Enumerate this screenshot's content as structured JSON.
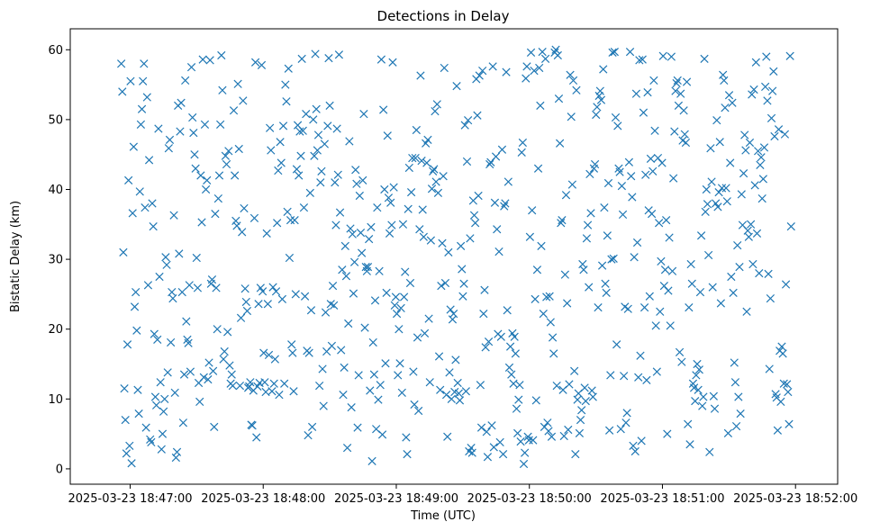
{
  "chart_data": {
    "type": "scatter",
    "title": "Detections in Delay",
    "xlabel": "Time (UTC)",
    "ylabel": "Bistatic Delay (km)",
    "marker": "x",
    "color": "#1f77b4",
    "grid": false,
    "legend": "none",
    "x_range": [
      "2025-03-23 18:46:56",
      "2025-03-23 18:51:58"
    ],
    "xlim": [
      "2025-03-23 18:46:33",
      "2025-03-23 18:52:19"
    ],
    "ylim": [
      -2.2,
      63
    ],
    "x_ticks": [
      "2025-03-23 18:47:00",
      "2025-03-23 18:48:00",
      "2025-03-23 18:49:00",
      "2025-03-23 18:50:00",
      "2025-03-23 18:51:00",
      "2025-03-23 18:52:00"
    ],
    "y_ticks": [
      0,
      10,
      20,
      30,
      40,
      50,
      60
    ],
    "points_y": [
      58.0,
      54.0,
      31.0,
      11.5,
      7.0,
      2.2,
      17.8,
      41.3,
      3.3,
      55.5,
      0.8,
      36.6,
      46.1,
      23.2,
      25.3,
      19.8,
      11.3,
      7.9,
      39.7,
      49.3,
      51.5,
      55.5,
      58.0,
      37.4,
      5.9,
      53.2,
      26.3,
      44.2,
      4.2,
      3.8,
      38.0,
      34.7,
      19.3,
      10.3,
      9.1,
      18.5,
      48.7,
      27.5,
      12.4,
      2.8,
      5.0,
      8.2,
      10.0,
      30.3,
      29.2,
      13.8,
      45.9,
      47.1,
      18.1,
      25.3,
      24.4,
      36.3,
      10.9,
      1.6,
      2.4,
      52.0,
      30.8,
      48.3,
      52.4,
      25.3,
      6.6,
      13.5,
      55.6,
      21.1,
      18.5,
      18.0,
      26.3,
      13.9,
      57.5,
      50.3,
      48.1,
      45.0,
      43.0,
      30.2,
      25.9,
      12.3,
      9.6,
      42.0,
      35.3,
      58.6,
      13.1,
      49.3,
      40.0,
      41.3,
      12.8,
      15.2,
      58.5,
      26.5,
      27.1,
      14.0,
      6.0,
      36.5,
      25.9,
      20.0,
      38.7,
      42.0,
      49.3,
      59.2,
      54.2,
      15.7,
      16.8,
      44.8,
      43.6,
      19.6,
      45.5,
      14.8,
      12.2,
      13.5,
      11.9,
      51.3,
      42.0,
      35.5,
      34.8,
      55.1,
      45.8,
      11.9,
      21.6,
      33.9,
      52.7,
      37.3,
      25.8,
      23.9,
      22.6,
      11.6,
      11.8,
      12.4,
      6.3,
      6.2,
      11.2,
      35.9,
      58.2,
      4.5,
      11.8,
      23.6,
      12.3,
      25.9,
      57.8,
      25.4,
      16.6,
      12.4,
      11.0,
      33.7,
      23.6,
      16.3,
      48.8,
      45.6,
      11.1,
      26.0,
      12.2,
      15.7,
      25.4,
      35.2,
      42.7,
      10.6,
      46.8,
      43.8,
      24.3,
      49.1,
      12.2,
      55.0,
      52.6,
      36.8,
      57.3,
      30.2,
      35.6,
      17.8,
      16.6,
      11.1,
      35.6,
      25.0,
      42.9,
      49.2,
      42.0,
      48.3,
      44.8,
      58.7,
      48.4,
      37.4,
      24.7,
      50.8,
      16.9,
      4.8,
      16.6,
      39.5,
      22.7,
      6.0,
      50.0,
      44.8,
      59.4,
      51.5,
      45.6,
      47.8,
      11.9,
      41.0,
      42.6,
      14.3,
      9.0,
      46.5,
      22.4,
      16.8,
      49.1,
      58.8,
      52.0,
      23.6,
      17.6,
      26.2,
      23.4,
      41.0,
      34.9,
      48.7,
      42.1,
      59.3,
      36.7,
      17.0,
      28.5,
      10.6,
      14.5,
      31.9,
      27.6,
      3.0,
      20.8,
      46.9,
      34.4,
      8.8,
      33.6,
      25.1,
      29.6,
      42.8,
      40.8,
      5.9,
      13.4,
      39.1,
      33.8,
      30.9,
      41.3,
      50.8,
      20.2,
      28.9,
      28.3,
      28.9,
      32.9,
      11.2,
      34.6,
      1.1,
      18.1,
      13.5,
      24.1,
      5.7,
      37.4,
      9.9,
      28.3,
      12.0,
      58.6,
      4.9,
      51.4,
      40.0,
      15.1,
      25.2,
      47.7,
      38.8,
      33.7,
      38.1,
      34.9,
      58.2,
      40.3,
      23.4,
      24.6,
      22.2,
      13.4,
      20.0,
      15.1,
      23.0,
      10.9,
      35.0,
      24.6,
      28.2,
      4.5,
      2.1,
      37.2,
      43.1,
      26.6,
      39.6,
      44.5,
      13.9,
      9.2,
      44.5,
      48.5,
      18.8,
      8.3,
      34.3,
      56.3,
      44.1,
      37.1,
      33.2,
      19.4,
      46.6,
      43.8,
      47.1,
      21.5,
      12.4,
      32.7,
      40.1,
      42.6,
      42.9,
      51.2,
      41.1,
      52.2,
      39.5,
      16.1,
      11.3,
      26.2,
      32.3,
      41.9,
      57.4,
      26.6,
      10.6,
      4.6,
      31.0,
      13.8,
      22.8,
      10.0,
      21.4,
      22.2,
      11.0,
      15.6,
      54.8,
      12.3,
      10.8,
      9.8,
      31.9,
      28.6,
      24.7,
      26.5,
      49.2,
      11.1,
      44.0,
      49.9,
      2.5,
      33.0,
      3.0,
      2.3,
      38.4,
      36.3,
      35.2,
      55.8,
      50.6,
      39.1,
      56.3,
      12.0,
      5.9,
      57.0,
      22.2,
      25.6,
      17.4,
      5.3,
      1.7,
      18.2,
      43.6,
      43.9,
      6.2,
      57.6,
      3.1,
      38.1,
      44.7,
      34.3,
      19.3,
      31.1,
      3.8,
      18.9,
      45.7,
      2.1,
      37.6,
      38.0,
      56.8,
      22.7,
      41.1,
      14.5,
      17.5,
      13.5,
      19.4,
      12.2,
      18.9,
      16.5,
      8.6,
      5.1,
      9.9,
      12.0,
      3.9,
      45.3,
      46.7,
      0.7,
      2.3,
      55.9,
      57.6,
      4.6,
      4.1,
      33.2,
      59.6,
      37.0,
      4.1,
      57.0,
      24.3,
      9.8,
      28.5,
      43.0,
      57.4,
      52.0,
      31.9,
      59.7,
      22.2,
      6.0,
      58.7,
      24.6,
      6.6,
      5.4,
      24.7,
      21.0,
      4.6,
      18.8,
      16.5,
      59.6,
      60.0,
      11.9,
      59.2,
      53.0,
      46.6,
      35.2,
      35.6,
      11.3,
      4.7,
      27.8,
      39.2,
      23.7,
      5.6,
      12.1,
      56.4,
      50.4,
      40.7,
      55.6,
      14.0,
      2.1,
      54.2,
      9.9,
      10.8,
      5.1,
      7.0,
      8.4,
      29.3,
      28.5,
      11.6,
      9.7,
      33.0,
      34.9,
      26.0,
      42.2,
      36.6,
      11.2,
      10.3,
      43.0,
      43.6,
      50.7,
      51.8,
      23.1,
      53.4,
      54.1,
      52.8,
      29.1,
      57.2,
      37.4,
      26.5,
      25.2,
      33.4,
      40.9,
      5.5,
      13.4,
      30.0,
      59.6,
      30.1,
      59.7,
      50.3,
      17.8,
      49.1,
      43.0,
      42.5,
      5.7,
      40.5,
      36.4,
      13.3,
      23.2,
      6.6,
      8.0,
      22.9,
      43.9,
      59.7,
      41.9,
      38.9,
      3.3,
      30.3,
      2.5,
      53.7,
      32.4,
      13.1,
      58.5,
      16.2,
      4.0,
      58.6,
      51.0,
      23.1,
      42.1,
      12.7,
      53.9,
      37.0,
      24.7,
      44.4,
      36.5,
      42.6,
      55.6,
      48.4,
      20.5,
      13.9,
      44.5,
      35.2,
      22.5,
      29.7,
      43.8,
      59.1,
      26.2,
      28.5,
      35.6,
      5.0,
      25.5,
      33.1,
      20.5,
      59.0,
      28.3,
      41.6,
      48.3,
      54.1,
      55.2,
      55.6,
      52.0,
      16.7,
      53.7,
      15.3,
      47.0,
      51.3,
      47.9,
      46.7,
      55.4,
      6.4,
      23.1,
      3.5,
      29.3,
      26.5,
      12.2,
      11.6,
      9.7,
      13.4,
      15.0,
      11.3,
      14.2,
      25.3,
      33.4,
      9.0,
      10.3,
      58.7,
      36.8,
      40.0,
      37.9,
      30.6,
      2.4,
      45.9,
      41.1,
      26.0,
      10.4,
      8.6,
      38.0,
      49.9,
      37.5,
      39.6,
      46.8,
      23.7,
      40.2,
      56.4,
      55.6,
      51.7,
      40.2,
      38.3,
      5.1,
      53.5,
      43.8,
      27.5,
      52.4,
      25.2,
      15.2,
      12.4,
      6.1,
      32.0,
      10.3,
      28.9,
      7.9,
      39.3,
      34.9,
      42.3,
      47.8,
      45.6,
      22.5,
      34.1,
      33.2,
      46.7,
      35.0,
      53.6,
      29.3,
      54.3,
      40.6,
      58.2,
      33.7,
      45.5,
      28.0,
      43.5,
      44.6,
      38.7,
      41.5,
      46.0,
      54.7,
      59.0,
      52.7,
      27.9,
      14.3,
      24.4,
      50.2,
      54.1,
      56.9,
      47.6,
      10.7,
      10.2,
      5.5,
      48.6,
      16.9,
      9.6,
      17.5,
      16.5,
      12.2,
      47.9,
      26.4,
      12.1,
      11.0,
      6.4,
      59.1,
      34.7
    ]
  }
}
